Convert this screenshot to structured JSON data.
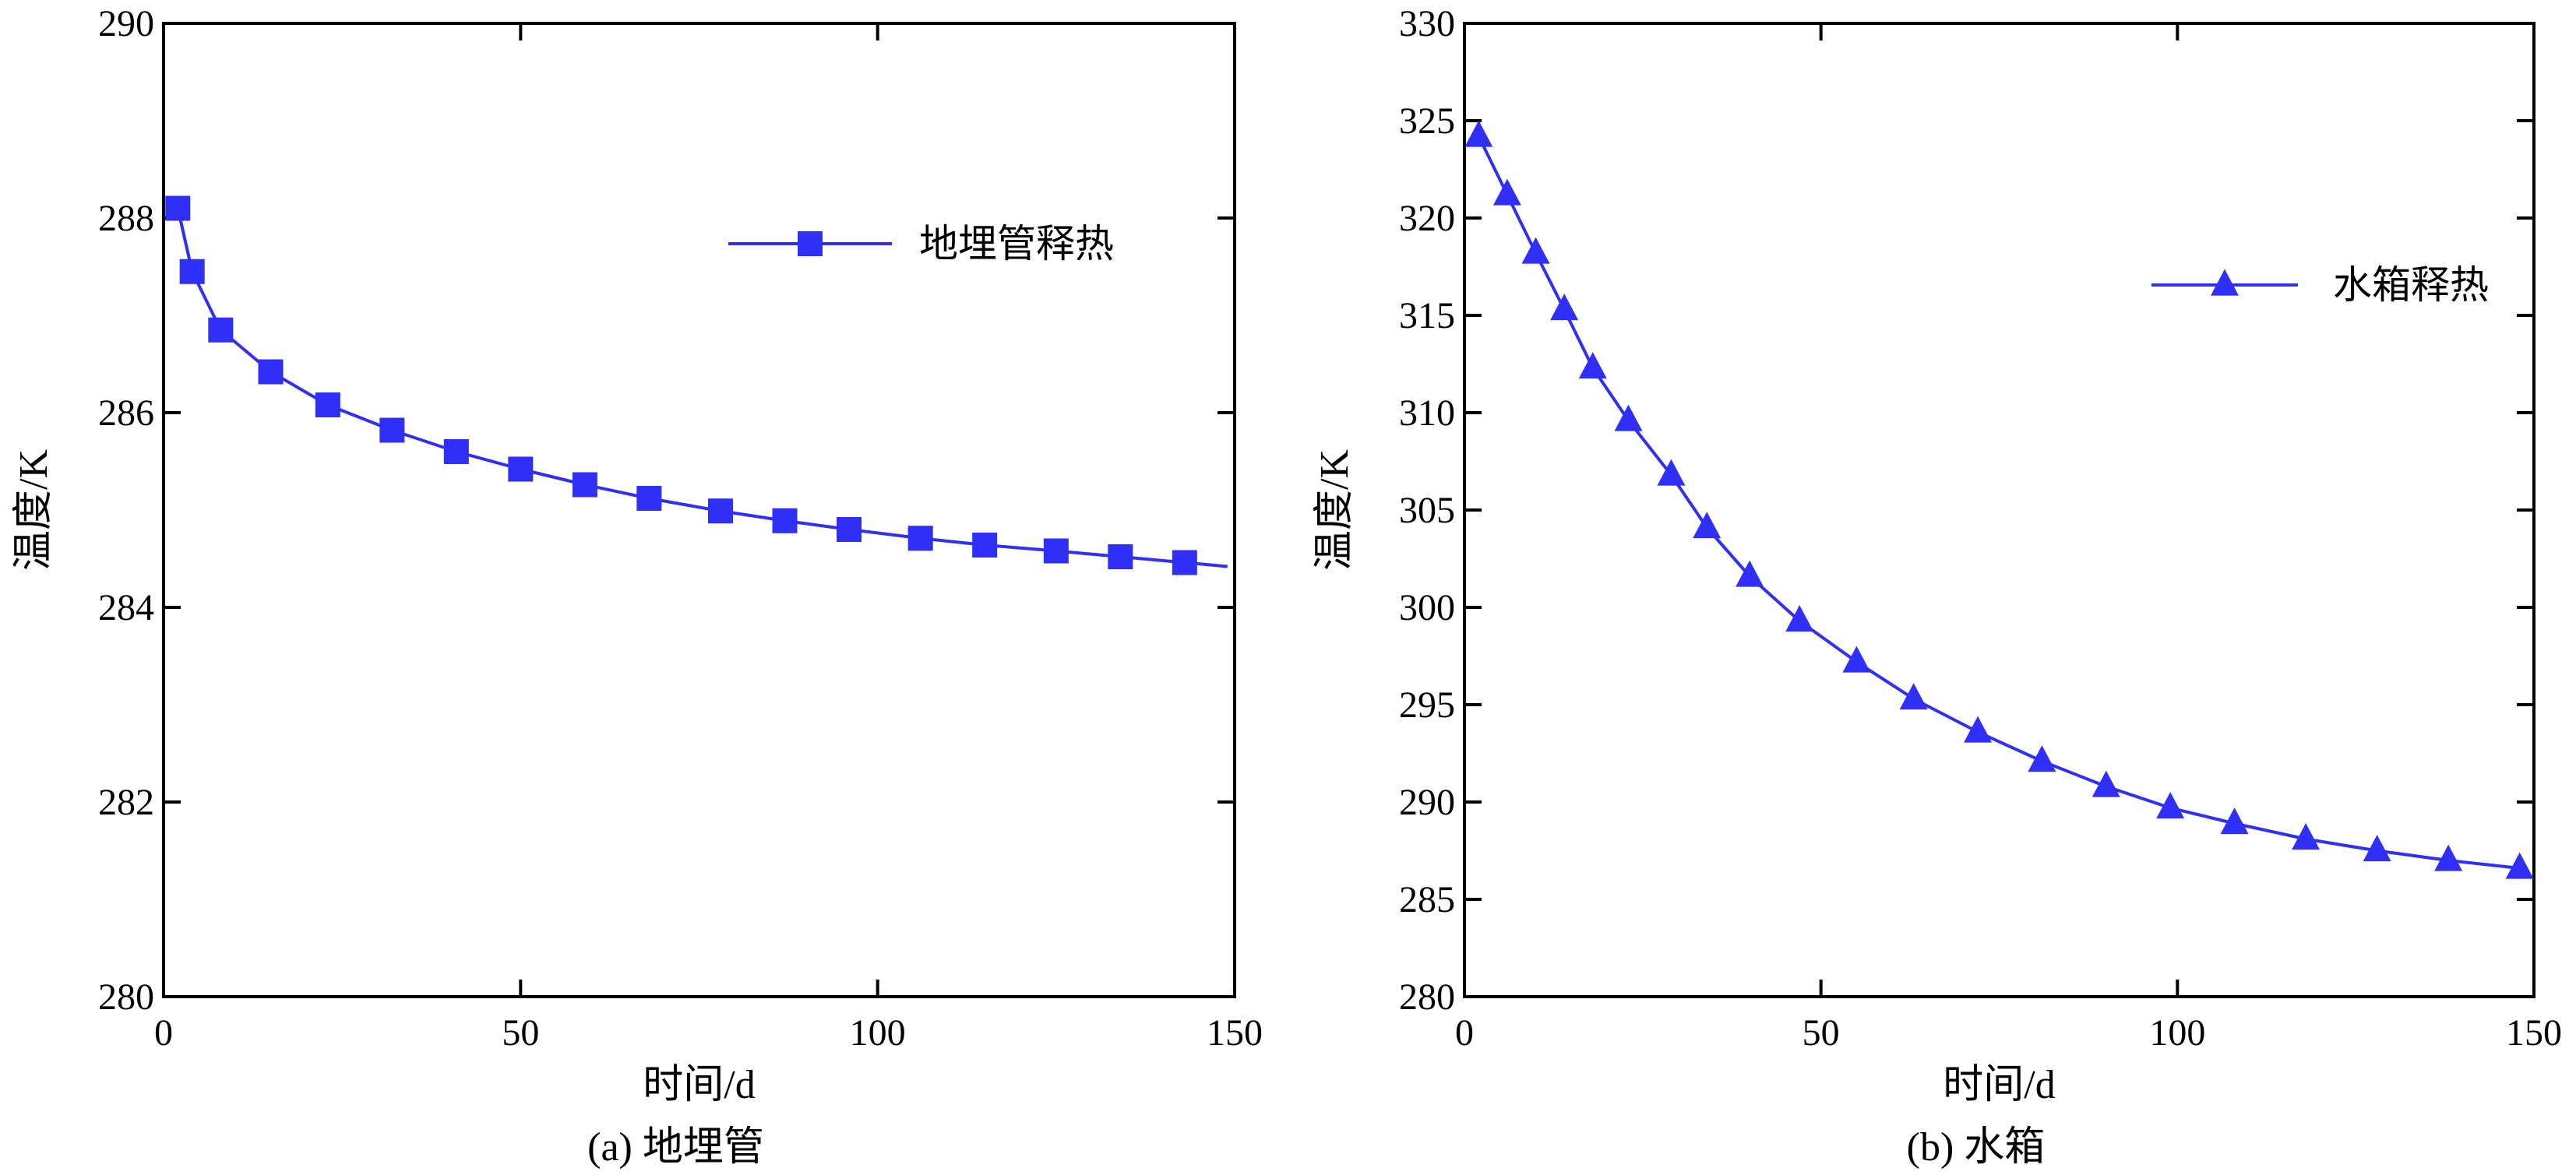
{
  "chart_data": [
    {
      "type": "line",
      "caption": "(a) 地埋管",
      "xlabel": "时间/d",
      "ylabel": "温度/K",
      "xlim": [
        0,
        150
      ],
      "ylim": [
        280,
        290
      ],
      "xticks": [
        0,
        50,
        100,
        150
      ],
      "yticks": [
        280,
        282,
        284,
        286,
        288,
        290
      ],
      "grid": false,
      "legend_position": "top-right",
      "series": [
        {
          "name": "地埋管释热",
          "color": "#2f2ff7",
          "marker": "square",
          "x": [
            2,
            4,
            8,
            15,
            23,
            32,
            41,
            50,
            59,
            68,
            78,
            87,
            96,
            106,
            115,
            125,
            134,
            143
          ],
          "values": [
            288.1,
            287.45,
            286.85,
            286.42,
            286.08,
            285.82,
            285.6,
            285.42,
            285.26,
            285.12,
            284.99,
            284.89,
            284.8,
            284.71,
            284.64,
            284.58,
            284.52,
            284.46
          ]
        }
      ],
      "line_end": {
        "x": 149,
        "y": 284.42
      }
    },
    {
      "type": "line",
      "caption": "(b) 水箱",
      "xlabel": "时间/d",
      "ylabel": "温度/K",
      "xlim": [
        0,
        150
      ],
      "ylim": [
        280,
        330
      ],
      "xticks": [
        0,
        50,
        100,
        150
      ],
      "yticks": [
        280,
        285,
        290,
        295,
        300,
        305,
        310,
        315,
        320,
        325,
        330
      ],
      "grid": false,
      "legend_position": "top-right",
      "series": [
        {
          "name": "水箱释热",
          "color": "#2f2ff7",
          "marker": "triangle",
          "x": [
            2,
            6,
            10,
            14,
            18,
            23,
            29,
            34,
            40,
            47,
            55,
            63,
            72,
            81,
            90,
            99,
            108,
            118,
            128,
            138,
            148
          ],
          "values": [
            324.2,
            321.2,
            318.2,
            315.3,
            312.3,
            309.6,
            306.8,
            304.1,
            301.6,
            299.3,
            297.2,
            295.3,
            293.6,
            292.1,
            290.8,
            289.7,
            288.9,
            288.1,
            287.5,
            287.0,
            286.6
          ]
        }
      ]
    }
  ]
}
